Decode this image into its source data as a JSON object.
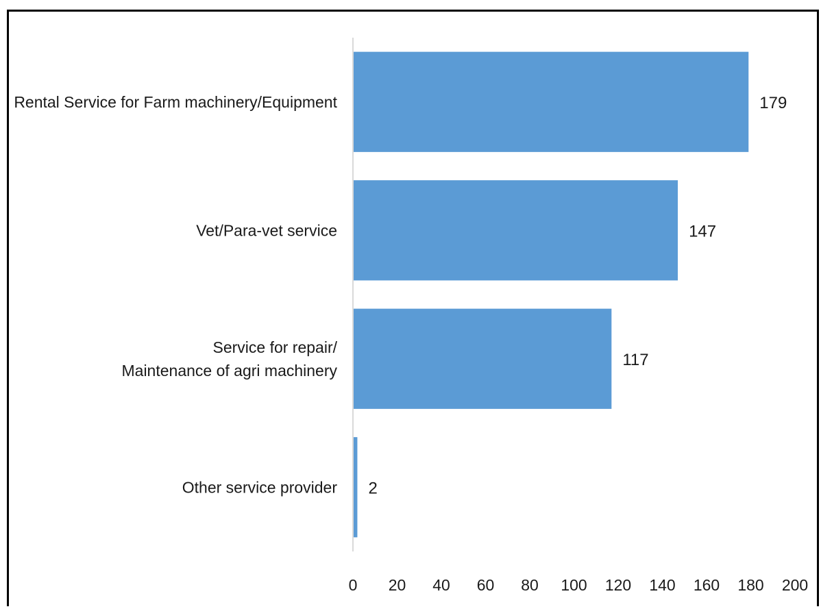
{
  "chart_data": {
    "type": "bar",
    "orientation": "horizontal",
    "categories": [
      [
        "Rental Service for Farm machinery/Equipment"
      ],
      [
        "Vet/Para-vet service"
      ],
      [
        "Service for repair/",
        "Maintenance of agri machinery"
      ],
      [
        "Other service provider"
      ]
    ],
    "values": [
      179,
      147,
      117,
      2
    ],
    "xlim": [
      0,
      200
    ],
    "xticks": [
      0,
      20,
      40,
      60,
      80,
      100,
      120,
      140,
      160,
      180,
      200
    ],
    "bar_color": "#5b9bd5",
    "axis_color": "#d9d9d9",
    "data_labels": true,
    "grid": false,
    "legend": false
  }
}
